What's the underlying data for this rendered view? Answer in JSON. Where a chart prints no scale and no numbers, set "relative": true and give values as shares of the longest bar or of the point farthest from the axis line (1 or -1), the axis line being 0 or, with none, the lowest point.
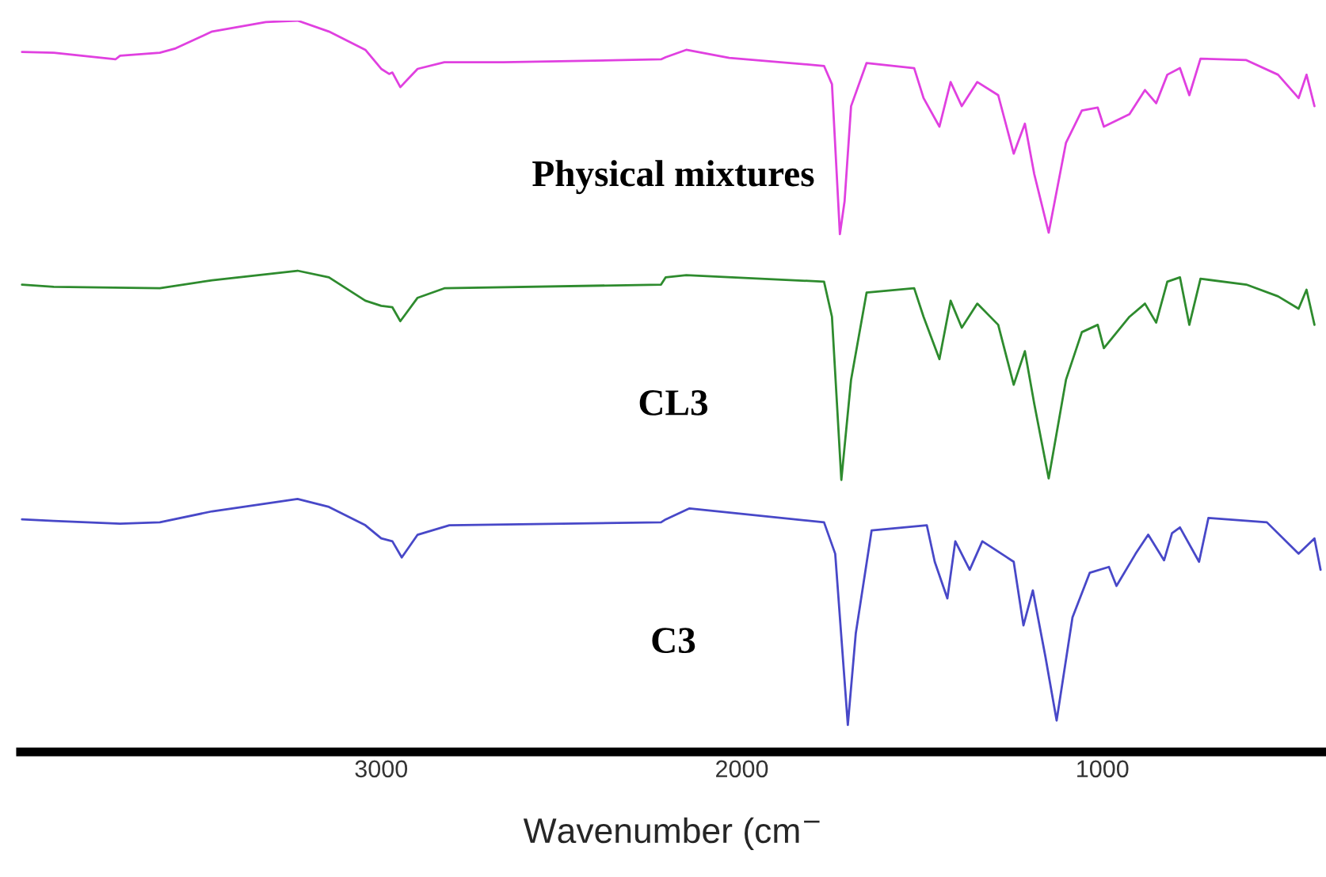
{
  "chart_data": {
    "type": "line",
    "relative": true,
    "xlabel": "Wavenumber (cm$^{−}$",
    "xlim": [
      4000,
      380
    ],
    "xticks": [
      3000,
      2000,
      1000
    ],
    "grid": false,
    "legend": false,
    "tick_labels": "x",
    "marker": "none",
    "line_style": "solid",
    "series": [
      {
        "name": "Physical mixtures",
        "color": "#e040e0",
        "x": [
          3996,
          3908,
          3737,
          3724,
          3614,
          3570,
          3469,
          3320,
          3232,
          3145,
          3044,
          3000,
          2978,
          2969,
          2947,
          2899,
          2825,
          2662,
          2224,
          2211,
          2154,
          2035,
          1772,
          1750,
          1728,
          1715,
          1697,
          1654,
          1522,
          1496,
          1452,
          1421,
          1390,
          1347,
          1289,
          1246,
          1215,
          1189,
          1149,
          1101,
          1057,
          1013,
          996,
          925,
          882,
          851,
          820,
          785,
          759,
          728,
          601,
          513,
          456,
          434,
          412
        ],
        "values": [
          0.957,
          0.956,
          0.947,
          0.952,
          0.956,
          0.962,
          0.985,
          0.998,
          1,
          0.985,
          0.96,
          0.934,
          0.927,
          0.929,
          0.909,
          0.934,
          0.943,
          0.943,
          0.947,
          0.95,
          0.96,
          0.949,
          0.938,
          0.913,
          0.708,
          0.753,
          0.883,
          0.942,
          0.935,
          0.894,
          0.855,
          0.916,
          0.883,
          0.916,
          0.898,
          0.818,
          0.859,
          0.79,
          0.71,
          0.833,
          0.877,
          0.881,
          0.855,
          0.872,
          0.905,
          0.887,
          0.926,
          0.935,
          0.898,
          0.948,
          0.946,
          0.926,
          0.894,
          0.926,
          0.883
        ]
      },
      {
        "name": "CL3",
        "color": "#2e8b2e",
        "x": [
          3996,
          3908,
          3614,
          3469,
          3232,
          3145,
          3044,
          3000,
          2969,
          2947,
          2899,
          2825,
          2224,
          2211,
          2154,
          1772,
          1750,
          1724,
          1697,
          1654,
          1522,
          1496,
          1452,
          1421,
          1390,
          1347,
          1289,
          1246,
          1215,
          1189,
          1149,
          1101,
          1057,
          1013,
          996,
          925,
          882,
          851,
          820,
          785,
          759,
          728,
          601,
          513,
          456,
          434,
          412
        ],
        "values": [
          0.639,
          0.636,
          0.634,
          0.645,
          0.658,
          0.649,
          0.617,
          0.61,
          0.608,
          0.589,
          0.621,
          0.634,
          0.639,
          0.649,
          0.652,
          0.643,
          0.595,
          0.372,
          0.509,
          0.628,
          0.634,
          0.595,
          0.537,
          0.617,
          0.58,
          0.613,
          0.584,
          0.502,
          0.548,
          0.476,
          0.374,
          0.509,
          0.574,
          0.584,
          0.552,
          0.595,
          0.613,
          0.587,
          0.643,
          0.649,
          0.584,
          0.647,
          0.639,
          0.623,
          0.606,
          0.632,
          0.584
        ]
      },
      {
        "name": "C3",
        "color": "#4848c8",
        "x": [
          3996,
          3908,
          3724,
          3614,
          3469,
          3232,
          3145,
          3044,
          3000,
          2969,
          2943,
          2899,
          2811,
          2224,
          2211,
          2145,
          1772,
          1741,
          1706,
          1684,
          1640,
          1487,
          1465,
          1430,
          1408,
          1368,
          1333,
          1246,
          1219,
          1193,
          1158,
          1127,
          1083,
          1035,
          982,
          961,
          908,
          873,
          829,
          807,
          785,
          732,
          706,
          544,
          456,
          412,
          395
        ],
        "values": [
          0.318,
          0.316,
          0.312,
          0.314,
          0.329,
          0.346,
          0.335,
          0.31,
          0.292,
          0.288,
          0.266,
          0.297,
          0.31,
          0.314,
          0.318,
          0.333,
          0.314,
          0.271,
          0.037,
          0.162,
          0.303,
          0.31,
          0.26,
          0.21,
          0.288,
          0.249,
          0.288,
          0.26,
          0.173,
          0.221,
          0.13,
          0.043,
          0.184,
          0.245,
          0.253,
          0.227,
          0.271,
          0.297,
          0.262,
          0.299,
          0.307,
          0.26,
          0.32,
          0.314,
          0.271,
          0.292,
          0.249
        ]
      }
    ]
  }
}
